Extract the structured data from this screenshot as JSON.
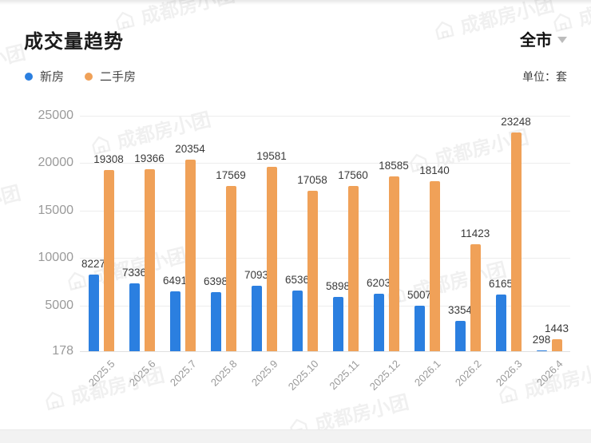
{
  "header": {
    "title": "成交量趋势",
    "scope": "全市",
    "unit_label": "单位：套"
  },
  "watermark": {
    "text": "成都房小团"
  },
  "chart_data": {
    "type": "bar",
    "title": "成交量趋势",
    "unit": "套",
    "categories": [
      "2025.5",
      "2025.6",
      "2025.7",
      "2025.8",
      "2025.9",
      "2025.10",
      "2025.11",
      "2025.12",
      "2026.1",
      "2026.2",
      "2026.3",
      "2026.4"
    ],
    "series": [
      {
        "name": "新房",
        "color": "#2b7fe0",
        "values": [
          8227,
          7336,
          6491,
          6398,
          7093,
          6536,
          5898,
          6203,
          5007,
          3354,
          6165,
          298
        ]
      },
      {
        "name": "二手房",
        "color": "#f0a158",
        "values": [
          19308,
          19366,
          20354,
          17569,
          19581,
          17058,
          17560,
          18585,
          18140,
          11423,
          23248,
          1443
        ]
      }
    ],
    "ylim": [
      178,
      25000
    ],
    "yticks": [
      25000,
      20000,
      15000,
      10000,
      5000,
      178
    ],
    "grid": true,
    "legend_position": "top-left",
    "value_labels": true,
    "xlabel_rotation": -45
  }
}
